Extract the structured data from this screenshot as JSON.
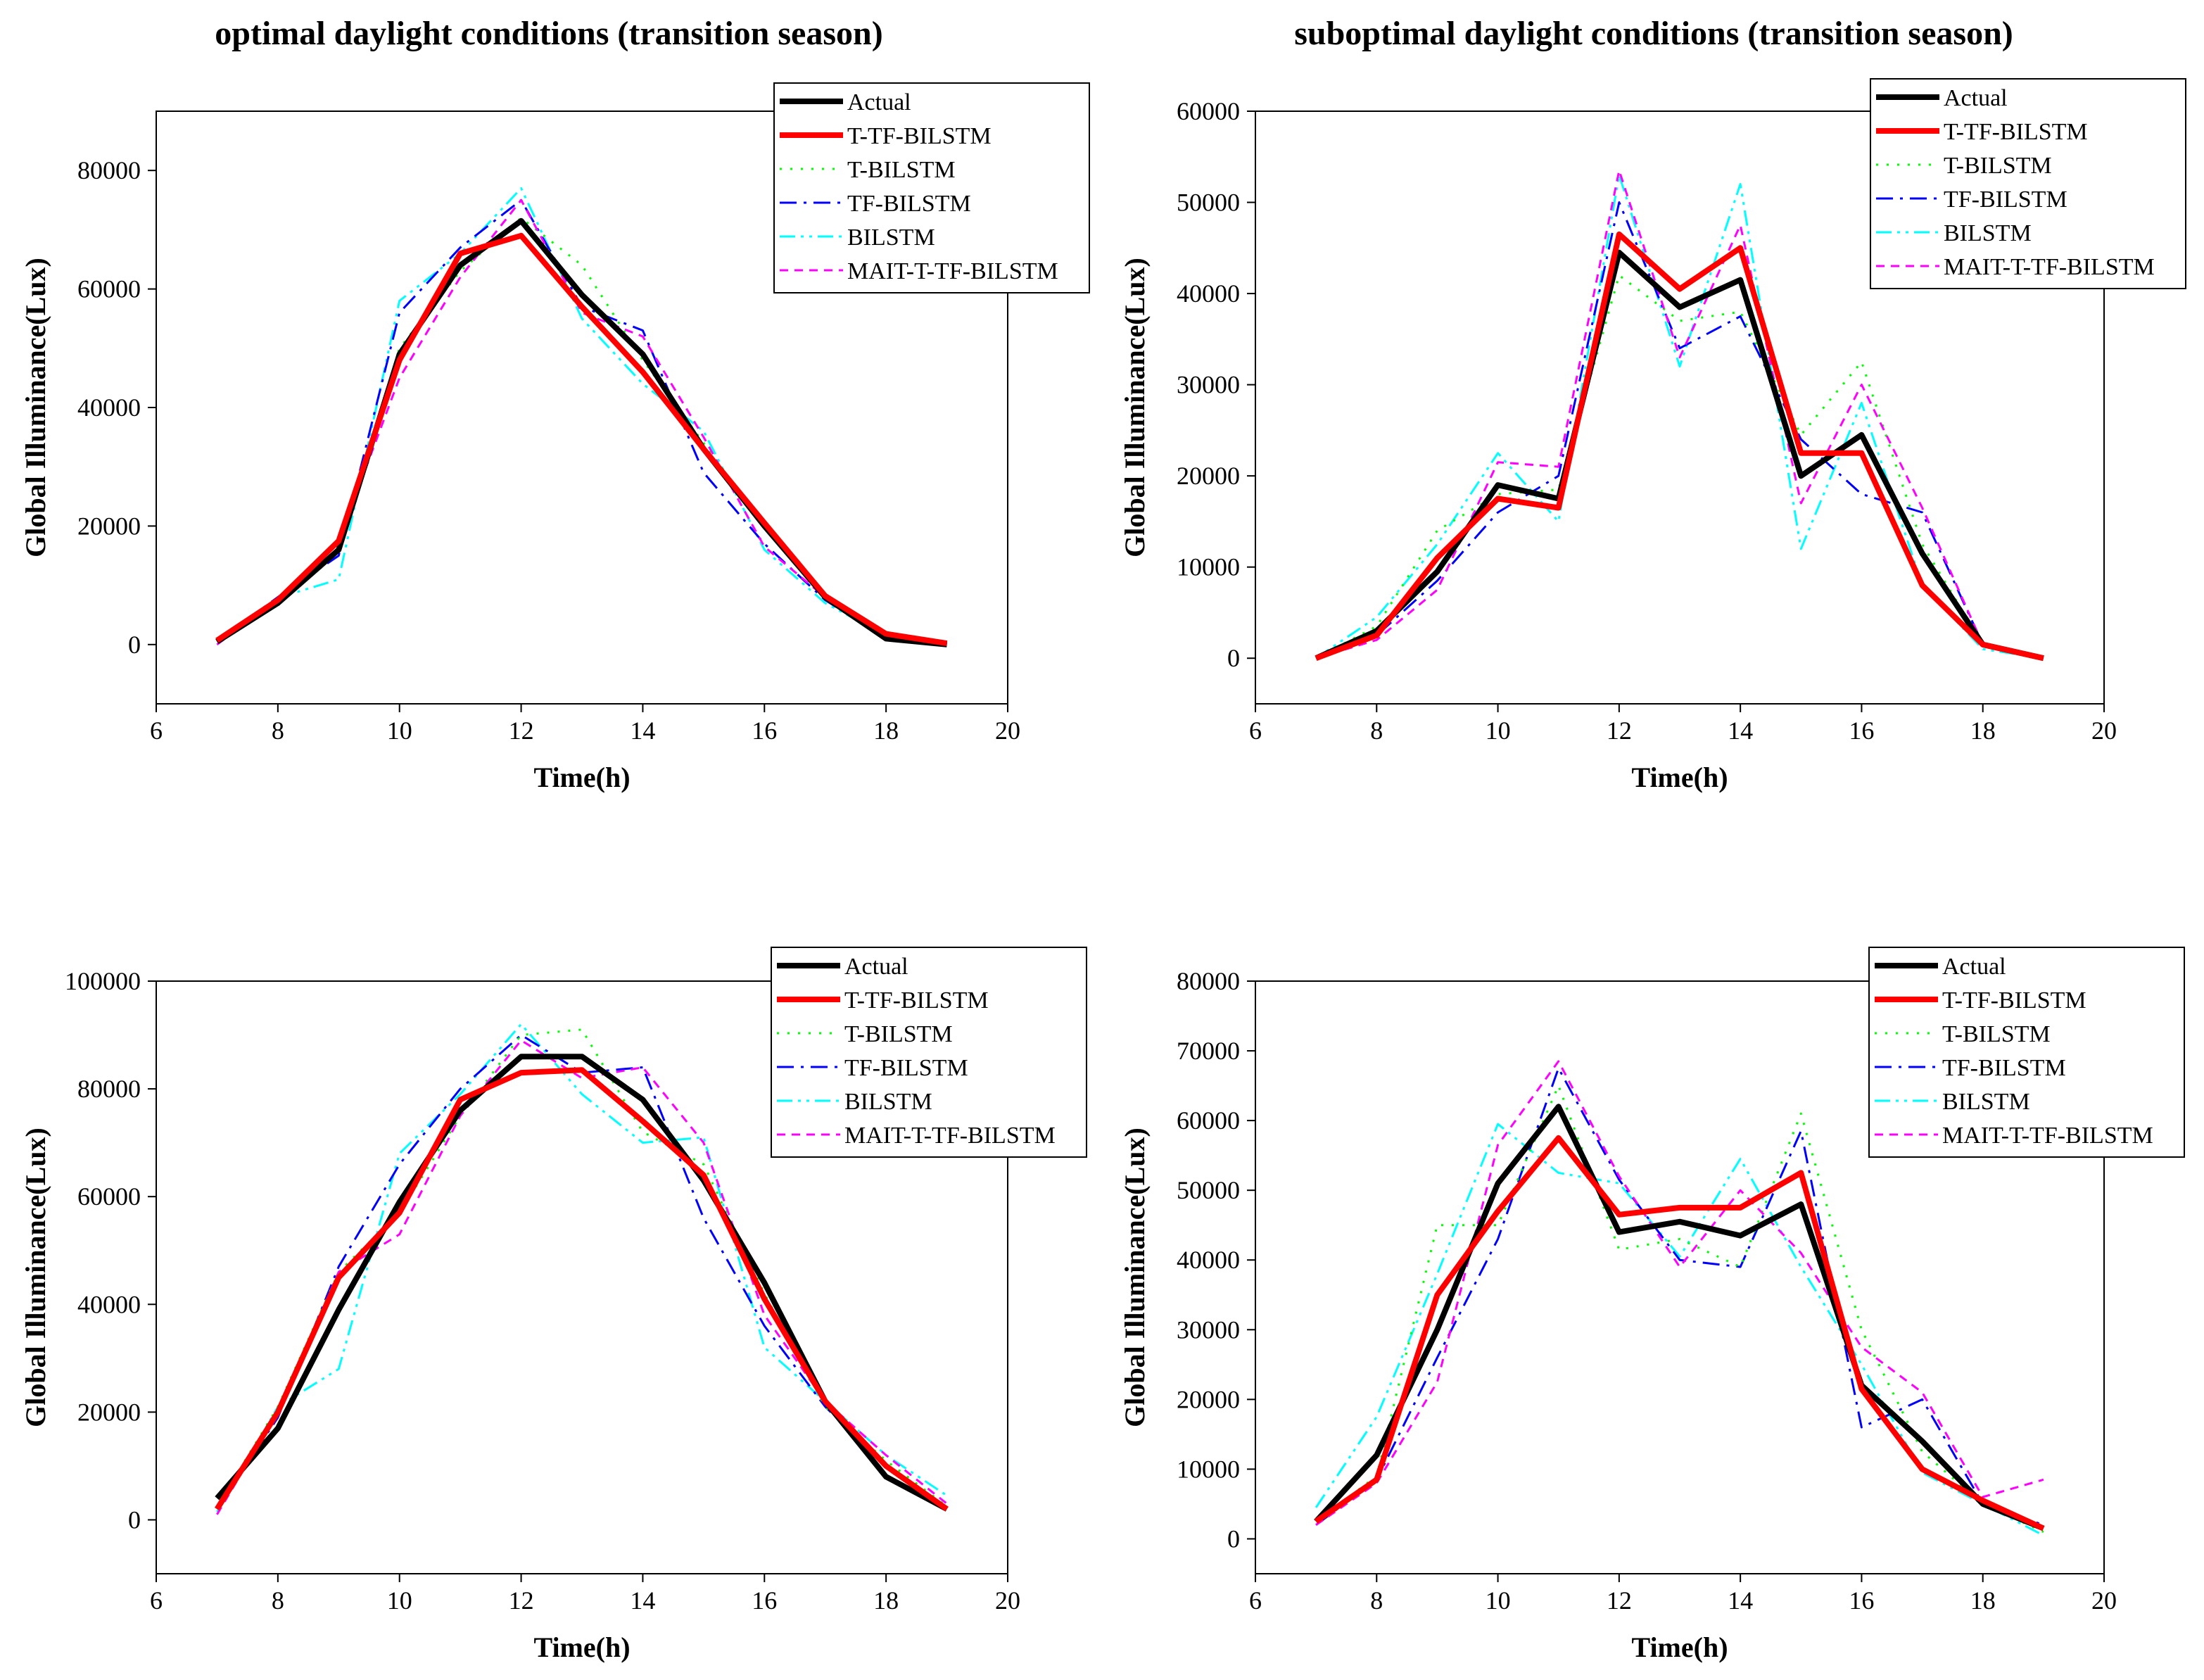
{
  "figure": {
    "titles": [
      "optimal daylight conditions (transition season)",
      "suboptimal daylight conditions (transition season)"
    ]
  },
  "legend": {
    "entries": [
      "Actual",
      "T-TF-BILSTM",
      "T-BILSTM",
      "TF-BILSTM",
      "BILSTM",
      "MAIT-T-TF-BILSTM"
    ]
  },
  "styles": {
    "Actual": {
      "color": "#000000",
      "dash": "solid"
    },
    "T-TF-BILSTM": {
      "color": "#ff0000",
      "dash": "solid"
    },
    "T-BILSTM": {
      "color": "#00ff00",
      "dash": "dot"
    },
    "TF-BILSTM": {
      "color": "#0000ff",
      "dash": "dashdot"
    },
    "BILSTM": {
      "color": "#00ffff",
      "dash": "dashdotdot"
    },
    "MAIT-T-TF-BILSTM": {
      "color": "#ff00ff",
      "dash": "shortdash"
    }
  },
  "chart_data": [
    {
      "type": "line",
      "title": "optimal daylight conditions (transition season)",
      "xlabel": "Time(h)",
      "ylabel": "Global Illuminance(Lux)",
      "xlim": [
        6,
        20
      ],
      "ylim": [
        -10000,
        90000
      ],
      "xticks": [
        "6",
        "8",
        "10",
        "12",
        "14",
        "16",
        "18",
        "20"
      ],
      "yticks": [
        "0",
        "20000",
        "40000",
        "60000",
        "80000"
      ],
      "x": [
        7,
        8,
        9,
        10,
        11,
        12,
        13,
        14,
        15,
        16,
        17,
        18,
        19
      ],
      "series": [
        {
          "name": "Actual",
          "values": [
            500,
            7000,
            16000,
            49000,
            64000,
            71500,
            59000,
            49000,
            33000,
            20000,
            8000,
            1000,
            0
          ]
        },
        {
          "name": "T-TF-BILSTM",
          "values": [
            700,
            7500,
            17500,
            48000,
            66000,
            69000,
            57000,
            46000,
            33000,
            20500,
            8200,
            1800,
            200
          ]
        },
        {
          "name": "T-BILSTM",
          "values": [
            600,
            7400,
            16000,
            50000,
            63000,
            72000,
            64000,
            48000,
            34000,
            20000,
            8000,
            1200,
            100
          ]
        },
        {
          "name": "TF-BILSTM",
          "values": [
            500,
            8000,
            15000,
            56000,
            67000,
            75000,
            57000,
            53000,
            29000,
            17000,
            7500,
            1000,
            100
          ]
        },
        {
          "name": "BILSTM",
          "values": [
            0,
            7900,
            11000,
            58000,
            66000,
            77000,
            55000,
            44000,
            36000,
            16000,
            7000,
            1500,
            0
          ]
        },
        {
          "name": "MAIT-T-TF-BILSTM",
          "values": [
            0,
            7500,
            17500,
            45000,
            62000,
            75000,
            56000,
            52000,
            35000,
            16500,
            8000,
            1800,
            100
          ]
        }
      ]
    },
    {
      "type": "line",
      "title": "suboptimal daylight conditions (transition season)",
      "xlabel": "Time(h)",
      "ylabel": "Global Illuminance(Lux)",
      "xlim": [
        6,
        20
      ],
      "ylim": [
        -5000,
        60000
      ],
      "xticks": [
        "6",
        "8",
        "10",
        "12",
        "14",
        "16",
        "18",
        "20"
      ],
      "yticks": [
        "0",
        "10000",
        "20000",
        "30000",
        "40000",
        "50000",
        "60000"
      ],
      "x": [
        7,
        8,
        9,
        10,
        11,
        12,
        13,
        14,
        15,
        16,
        17,
        18,
        19
      ],
      "series": [
        {
          "name": "Actual",
          "values": [
            0,
            3000,
            9500,
            19000,
            17500,
            44500,
            38500,
            41500,
            20000,
            24500,
            11500,
            1500,
            0
          ]
        },
        {
          "name": "T-TF-BILSTM",
          "values": [
            0,
            2500,
            11000,
            17500,
            16500,
            46500,
            40500,
            45000,
            22500,
            22500,
            8000,
            1500,
            0
          ]
        },
        {
          "name": "T-BILSTM",
          "values": [
            0,
            3500,
            14000,
            18000,
            18500,
            42000,
            37000,
            38000,
            24500,
            32500,
            12500,
            1500,
            0
          ]
        },
        {
          "name": "TF-BILSTM",
          "values": [
            0,
            2500,
            8500,
            16000,
            20000,
            50000,
            34000,
            37500,
            24000,
            18000,
            16000,
            1500,
            0
          ]
        },
        {
          "name": "BILSTM",
          "values": [
            0,
            4500,
            12500,
            22500,
            15000,
            53000,
            32000,
            52000,
            12000,
            28000,
            8000,
            1000,
            0
          ]
        },
        {
          "name": "MAIT-T-TF-BILSTM",
          "values": [
            0,
            2000,
            7500,
            21500,
            21000,
            53500,
            33000,
            47500,
            17000,
            30000,
            16500,
            1500,
            0
          ]
        }
      ]
    },
    {
      "type": "line",
      "title": "",
      "xlabel": "Time(h)",
      "ylabel": "Global Illuminance(Lux)",
      "xlim": [
        6,
        20
      ],
      "ylim": [
        -10000,
        100000
      ],
      "xticks": [
        "6",
        "8",
        "10",
        "12",
        "14",
        "16",
        "18",
        "20"
      ],
      "yticks": [
        "0",
        "20000",
        "40000",
        "60000",
        "80000",
        "100000"
      ],
      "x": [
        7,
        8,
        9,
        10,
        11,
        12,
        13,
        14,
        15,
        16,
        17,
        18,
        19
      ],
      "series": [
        {
          "name": "Actual",
          "values": [
            4000,
            17000,
            39000,
            59000,
            76000,
            86000,
            86000,
            78000,
            63000,
            44000,
            22000,
            8000,
            2000
          ]
        },
        {
          "name": "T-TF-BILSTM",
          "values": [
            2000,
            20000,
            45000,
            57000,
            78000,
            83000,
            83500,
            74000,
            64000,
            41000,
            22000,
            10000,
            2000
          ]
        },
        {
          "name": "T-BILSTM",
          "values": [
            2500,
            21000,
            46000,
            57000,
            75000,
            90000,
            91000,
            72000,
            66000,
            42000,
            21000,
            11000,
            2500
          ]
        },
        {
          "name": "TF-BILSTM",
          "values": [
            2000,
            19000,
            47000,
            66000,
            80000,
            90000,
            83000,
            84000,
            56000,
            36000,
            21000,
            10000,
            2000
          ]
        },
        {
          "name": "BILSTM",
          "values": [
            1500,
            21000,
            28000,
            68000,
            79000,
            92000,
            79000,
            70000,
            71000,
            32000,
            22000,
            12000,
            4500
          ]
        },
        {
          "name": "MAIT-T-TF-BILSTM",
          "values": [
            1000,
            20000,
            46000,
            53000,
            75000,
            89000,
            82000,
            84000,
            70000,
            38000,
            22000,
            12000,
            3000
          ]
        }
      ]
    },
    {
      "type": "line",
      "title": "",
      "xlabel": "Time(h)",
      "ylabel": "Global Illuminance(Lux)",
      "xlim": [
        6,
        20
      ],
      "ylim": [
        -5000,
        80000
      ],
      "xticks": [
        "6",
        "8",
        "10",
        "12",
        "14",
        "16",
        "18",
        "20"
      ],
      "yticks": [
        "0",
        "10000",
        "20000",
        "30000",
        "40000",
        "50000",
        "60000",
        "70000",
        "80000"
      ],
      "x": [
        7,
        8,
        9,
        10,
        11,
        12,
        13,
        14,
        15,
        16,
        17,
        18,
        19
      ],
      "series": [
        {
          "name": "Actual",
          "values": [
            2500,
            12000,
            30000,
            51000,
            62000,
            44000,
            45500,
            43500,
            48000,
            22000,
            14000,
            5000,
            1500
          ]
        },
        {
          "name": "T-TF-BILSTM",
          "values": [
            2500,
            8500,
            35000,
            47000,
            57500,
            46500,
            47500,
            47500,
            52500,
            21500,
            10000,
            5500,
            1500
          ]
        },
        {
          "name": "T-BILSTM",
          "values": [
            2500,
            9000,
            45000,
            45000,
            65000,
            41500,
            43000,
            39000,
            61000,
            30000,
            12500,
            5000,
            1000
          ]
        },
        {
          "name": "TF-BILSTM",
          "values": [
            2000,
            8500,
            26000,
            43000,
            67500,
            51500,
            40000,
            39000,
            58500,
            16000,
            20000,
            5000,
            2000
          ]
        },
        {
          "name": "BILSTM",
          "values": [
            4500,
            17500,
            38000,
            59500,
            52500,
            51000,
            40500,
            54500,
            39000,
            25000,
            9500,
            5000,
            500
          ]
        },
        {
          "name": "MAIT-T-TF-BILSTM",
          "values": [
            2000,
            8000,
            22500,
            56500,
            68500,
            52000,
            39000,
            50000,
            41000,
            27500,
            21000,
            6000,
            8500
          ]
        }
      ]
    }
  ]
}
